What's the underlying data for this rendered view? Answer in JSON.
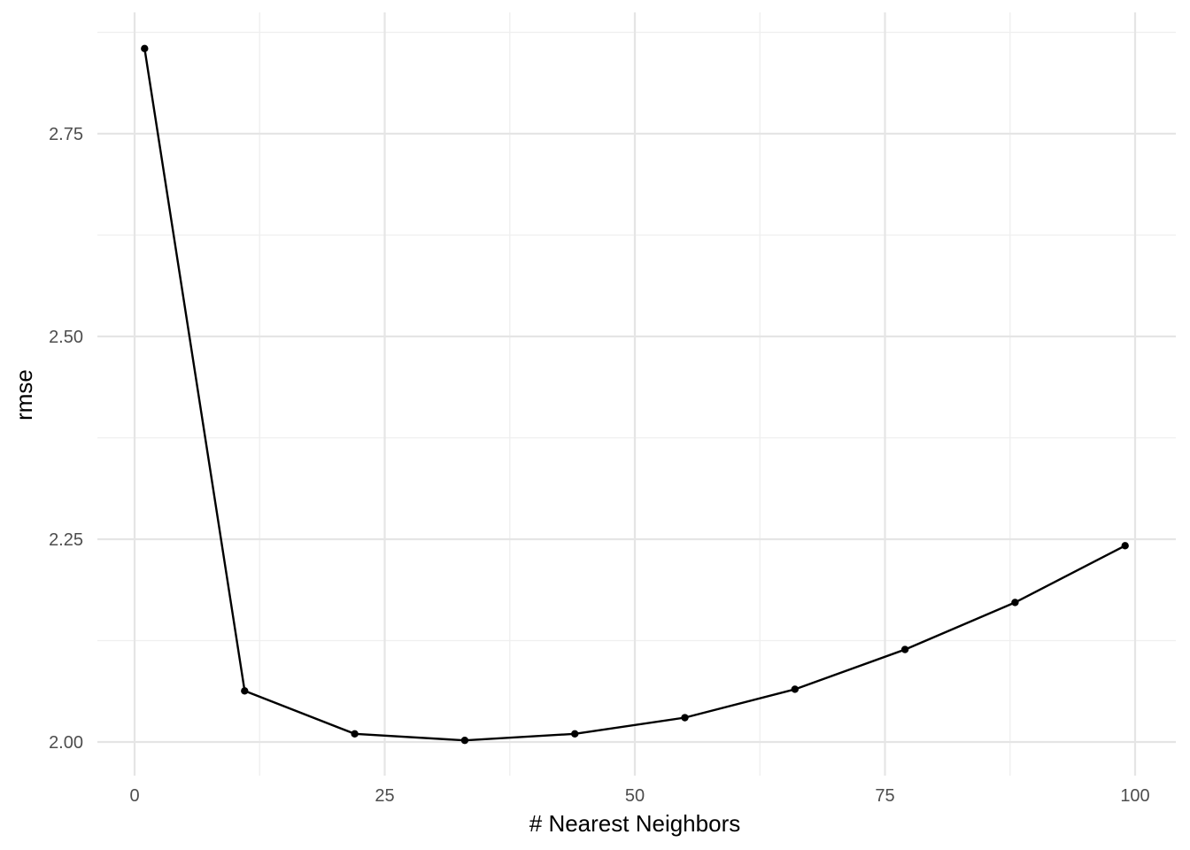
{
  "chart_data": {
    "type": "line",
    "title": "",
    "xlabel": "# Nearest Neighbors",
    "ylabel": "rmse",
    "xlim": [
      0,
      100
    ],
    "ylim": [
      2.0,
      2.9
    ],
    "x_ticks": [
      0,
      25,
      50,
      75,
      100
    ],
    "x_tick_labels": [
      "0",
      "25",
      "50",
      "75",
      "100"
    ],
    "y_ticks": [
      2.0,
      2.25,
      2.5,
      2.75
    ],
    "y_tick_labels": [
      "2.00",
      "2.25",
      "2.50",
      "2.75"
    ],
    "grid": true,
    "legend": "none",
    "colors": {
      "line": "#000000",
      "point": "#000000",
      "grid_major": "#e5e5e5",
      "grid_minor": "#efefef"
    },
    "series": [
      {
        "x": [
          1,
          11,
          22,
          33,
          44,
          55,
          66,
          77,
          88,
          99
        ],
        "y": [
          2.855,
          2.063,
          2.01,
          2.002,
          2.01,
          2.03,
          2.065,
          2.114,
          2.172,
          2.242
        ]
      }
    ]
  }
}
